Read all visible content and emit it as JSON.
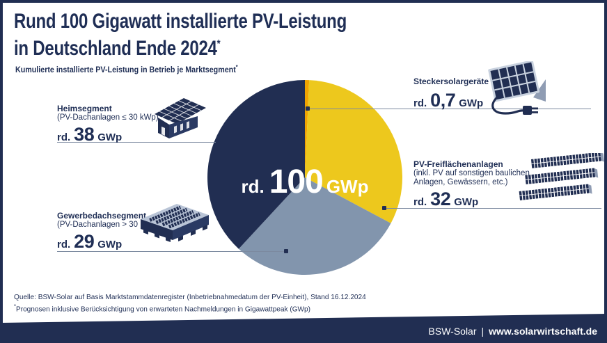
{
  "header": {
    "title_line1": "Rund 100 Gigawatt installierte PV-Leistung",
    "title_line2": "in Deutschland Ende 2024",
    "title_sup": "*",
    "subtitle": "Kumulierte installierte PV-Leistung in Betrieb je Marktsegment",
    "subtitle_sup": "*"
  },
  "chart_data": {
    "type": "pie",
    "title": "Kumulierte installierte PV-Leistung in Betrieb je Marktsegment",
    "unit": "GWp",
    "total_approx": 100,
    "center_label": {
      "prefix": "rd.",
      "value": "100",
      "unit": "GWp"
    },
    "start_angle_deg": -90,
    "direction": "clockwise",
    "legend_position": "callouts",
    "segments": [
      {
        "id": "steckersolar",
        "label": "Steckersolargeräte",
        "value": 0.7,
        "display": "rd. 0,7 GWp",
        "color": "#f0a400"
      },
      {
        "id": "freiflaechen",
        "label": "PV-Freiflächenanlagen",
        "value": 32,
        "display": "rd. 32 GWp",
        "color": "#edc81d"
      },
      {
        "id": "gewerbedach",
        "label": "Gewerbedachsegment",
        "value": 29,
        "display": "rd. 29 GWp",
        "color": "#8295ad"
      },
      {
        "id": "heim",
        "label": "Heimsegment",
        "value": 38,
        "display": "rd. 38 GWp",
        "color": "#212e52"
      }
    ]
  },
  "callouts": {
    "heim": {
      "label": "Heimsegment",
      "sub": "(PV-Dachanlagen ≤ 30 kWp)",
      "value_prefix": "rd.",
      "value": "38",
      "unit": "GWp"
    },
    "gewerbe": {
      "label": "Gewerbedachsegment",
      "sub": "(PV-Dachanlagen > 30 kWp)",
      "value_prefix": "rd.",
      "value": "29",
      "unit": "GWp"
    },
    "stecker": {
      "label": "Steckersolargeräte",
      "sub": "",
      "value_prefix": "rd.",
      "value": "0,7",
      "unit": "GWp"
    },
    "freiflaechen": {
      "label": "PV-Freiflächenanlagen",
      "sub": "(inkl. PV auf sonstigen baulichen Anlagen, Gewässern, etc.)",
      "value_prefix": "rd.",
      "value": "32",
      "unit": "GWp"
    }
  },
  "source": {
    "line1": "Quelle: BSW-Solar auf Basis Marktstammdatenregister (Inbetriebnahmedatum der PV-Einheit), Stand 16.12.2024",
    "line2_sup": "*",
    "line2": "Prognosen inklusive Berücksichtigung von erwarteten Nachmeldungen in Gigawattpeak (GWp)"
  },
  "footer": {
    "org": "BSW-Solar",
    "separator": "|",
    "url": "www.solarwirtschaft.de"
  },
  "colors": {
    "navy": "#212e52",
    "yellow": "#edc81d",
    "orange": "#f0a400",
    "slate_blue": "#8295ad",
    "text": "#1f2e55",
    "connector": "#7c8aa0",
    "white": "#ffffff"
  },
  "icons": {
    "heim": "house-solar-roof-icon",
    "gewerbe": "flat-roof-building-solar-icon",
    "stecker": "plug-in-solar-panel-icon",
    "freiflaechen": "ground-mounted-solar-arrays-icon"
  }
}
